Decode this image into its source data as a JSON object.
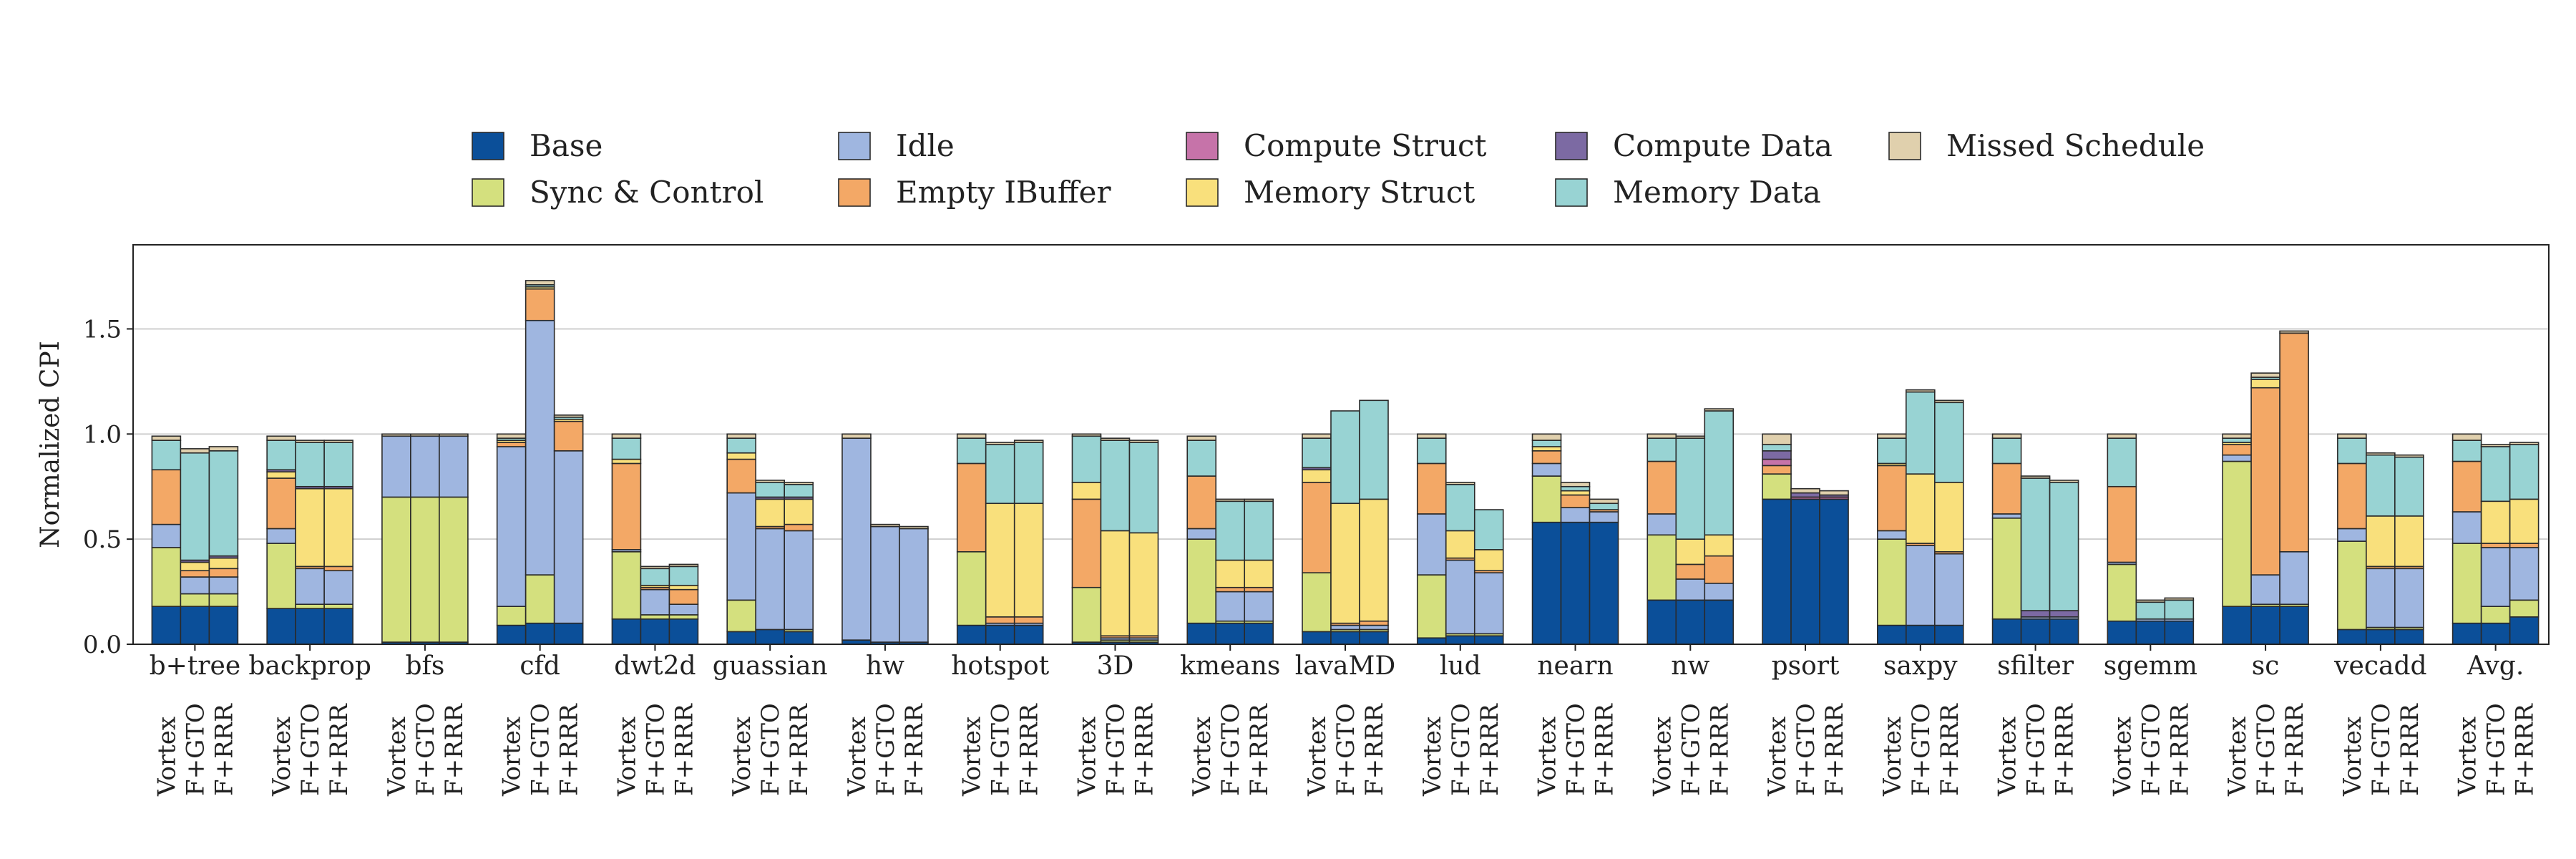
{
  "chart_data": {
    "type": "bar",
    "stacked": true,
    "ylabel": "Normalized CPI",
    "ylim": [
      0,
      1.9
    ],
    "yticks": [
      "0.0",
      "0.5",
      "1.0",
      "1.5"
    ],
    "grid": true,
    "legend_position": "top-center",
    "groups": [
      "b+tree",
      "backprop",
      "bfs",
      "cfd",
      "dwt2d",
      "guassian",
      "hw",
      "hotspot",
      "3D",
      "kmeans",
      "lavaMD",
      "lud",
      "nearn",
      "nw",
      "psort",
      "saxpy",
      "sfilter",
      "sgemm",
      "sc",
      "vecadd",
      "Avg."
    ],
    "configs": [
      "Vortex",
      "F+GTO",
      "F+RRR"
    ],
    "series": [
      {
        "name": "Base",
        "color": "#0b4f99"
      },
      {
        "name": "Sync & Control",
        "color": "#d4e07e"
      },
      {
        "name": "Idle",
        "color": "#9fb6e0"
      },
      {
        "name": "Empty IBuffer",
        "color": "#f3a866"
      },
      {
        "name": "Compute Struct",
        "color": "#c673a9"
      },
      {
        "name": "Memory Struct",
        "color": "#f9e07c"
      },
      {
        "name": "Compute Data",
        "color": "#7c6aa3"
      },
      {
        "name": "Memory Data",
        "color": "#98d3d3"
      },
      {
        "name": "Missed Schedule",
        "color": "#e0d0ad"
      }
    ],
    "bars": [
      [
        [
          0.18,
          0.28,
          0.11,
          0.26,
          0,
          0,
          0,
          0.14,
          0.02
        ],
        [
          0.18,
          0.06,
          0.08,
          0.03,
          0,
          0.04,
          0.01,
          0.51,
          0.02
        ],
        [
          0.18,
          0.06,
          0.08,
          0.04,
          0,
          0.05,
          0.01,
          0.5,
          0.02
        ]
      ],
      [
        [
          0.17,
          0.31,
          0.07,
          0.24,
          0,
          0.03,
          0.01,
          0.14,
          0.02
        ],
        [
          0.17,
          0.02,
          0.17,
          0.01,
          0,
          0.37,
          0.01,
          0.21,
          0.01
        ],
        [
          0.17,
          0.02,
          0.16,
          0.02,
          0,
          0.37,
          0.01,
          0.21,
          0.01
        ]
      ],
      [
        [
          0.01,
          0.69,
          0.29,
          0,
          0,
          0,
          0,
          0,
          0.01
        ],
        [
          0.01,
          0.69,
          0.29,
          0,
          0,
          0,
          0,
          0,
          0.01
        ],
        [
          0.01,
          0.69,
          0.29,
          0,
          0,
          0,
          0,
          0,
          0.01
        ]
      ],
      [
        [
          0.09,
          0.09,
          0.76,
          0.02,
          0,
          0.01,
          0,
          0.01,
          0.02
        ],
        [
          0.1,
          0.23,
          1.21,
          0.15,
          0,
          0.01,
          0,
          0.01,
          0.02
        ],
        [
          0.1,
          0,
          0.82,
          0.14,
          0,
          0.01,
          0,
          0.01,
          0.01
        ]
      ],
      [
        [
          0.12,
          0.32,
          0.01,
          0.41,
          0,
          0.02,
          0,
          0.1,
          0.02
        ],
        [
          0.12,
          0.02,
          0.12,
          0.01,
          0,
          0.01,
          0,
          0.08,
          0.01
        ],
        [
          0.12,
          0.02,
          0.05,
          0.07,
          0,
          0.02,
          0,
          0.09,
          0.01
        ]
      ],
      [
        [
          0.06,
          0.15,
          0.51,
          0.16,
          0,
          0.03,
          0,
          0.07,
          0.02
        ],
        [
          0.07,
          0,
          0.48,
          0.01,
          0,
          0.13,
          0.01,
          0.07,
          0.01
        ],
        [
          0.06,
          0.01,
          0.47,
          0.03,
          0,
          0.12,
          0.01,
          0.06,
          0.01
        ]
      ],
      [
        [
          0.02,
          0,
          0.96,
          0,
          0,
          0,
          0,
          0,
          0.02
        ],
        [
          0.01,
          0,
          0.55,
          0,
          0,
          0,
          0,
          0,
          0.01
        ],
        [
          0.01,
          0,
          0.54,
          0,
          0,
          0,
          0,
          0,
          0.01
        ]
      ],
      [
        [
          0.09,
          0.35,
          0,
          0.42,
          0,
          0,
          0,
          0.12,
          0.02
        ],
        [
          0.09,
          0,
          0.01,
          0.03,
          0,
          0.54,
          0,
          0.28,
          0.01
        ],
        [
          0.09,
          0,
          0.01,
          0.03,
          0,
          0.54,
          0,
          0.29,
          0.01
        ]
      ],
      [
        [
          0.01,
          0.26,
          0,
          0.42,
          0,
          0.08,
          0,
          0.22,
          0.01
        ],
        [
          0.01,
          0.01,
          0.01,
          0.01,
          0,
          0.5,
          0,
          0.43,
          0.01
        ],
        [
          0.01,
          0.01,
          0.01,
          0.01,
          0,
          0.49,
          0,
          0.43,
          0.01
        ]
      ],
      [
        [
          0.1,
          0.4,
          0.05,
          0.25,
          0,
          0,
          0,
          0.17,
          0.02
        ],
        [
          0.1,
          0.01,
          0.14,
          0.02,
          0,
          0.13,
          0,
          0.28,
          0.01
        ],
        [
          0.1,
          0.01,
          0.14,
          0.02,
          0,
          0.13,
          0,
          0.28,
          0.01
        ]
      ],
      [
        [
          0.06,
          0.28,
          0,
          0.43,
          0,
          0.06,
          0.01,
          0.14,
          0.02
        ],
        [
          0.06,
          0.01,
          0.02,
          0.01,
          0,
          0.57,
          0,
          0.44,
          0
        ],
        [
          0.06,
          0.01,
          0.02,
          0.02,
          0,
          0.58,
          0,
          0.47,
          0
        ]
      ],
      [
        [
          0.03,
          0.3,
          0.29,
          0.24,
          0,
          0,
          0,
          0.12,
          0.02
        ],
        [
          0.04,
          0.01,
          0.35,
          0.01,
          0,
          0.13,
          0,
          0.22,
          0.01
        ],
        [
          0.04,
          0.01,
          0.29,
          0.01,
          0,
          0.1,
          0,
          0.19,
          0
        ]
      ],
      [
        [
          0.58,
          0.22,
          0.06,
          0.06,
          0,
          0.02,
          0,
          0.03,
          0.03
        ],
        [
          0.58,
          0,
          0.07,
          0.06,
          0,
          0.02,
          0,
          0.02,
          0.02
        ],
        [
          0.58,
          0,
          0.05,
          0.01,
          0,
          0,
          0,
          0.03,
          0.02
        ]
      ],
      [
        [
          0.21,
          0.31,
          0.1,
          0.25,
          0,
          0,
          0,
          0.11,
          0.02
        ],
        [
          0.21,
          0,
          0.1,
          0.07,
          0,
          0.12,
          0,
          0.48,
          0.01
        ],
        [
          0.21,
          0,
          0.08,
          0.13,
          0,
          0.1,
          0,
          0.59,
          0.01
        ]
      ],
      [
        [
          0.69,
          0.12,
          0,
          0.04,
          0.03,
          0,
          0.04,
          0.03,
          0.05
        ],
        [
          0.69,
          0,
          0,
          0,
          0.01,
          0,
          0.02,
          0,
          0.02
        ],
        [
          0.69,
          0,
          0,
          0,
          0.01,
          0,
          0.01,
          0,
          0.02
        ]
      ],
      [
        [
          0.09,
          0.41,
          0.04,
          0.31,
          0,
          0.01,
          0,
          0.12,
          0.02
        ],
        [
          0.09,
          0,
          0.38,
          0.01,
          0,
          0.33,
          0,
          0.39,
          0.01
        ],
        [
          0.09,
          0,
          0.34,
          0.01,
          0,
          0.33,
          0,
          0.38,
          0.01
        ]
      ],
      [
        [
          0.12,
          0.48,
          0.02,
          0.24,
          0,
          0,
          0,
          0.12,
          0.02
        ],
        [
          0.12,
          0,
          0.01,
          0,
          0,
          0,
          0.03,
          0.63,
          0.01
        ],
        [
          0.12,
          0,
          0.01,
          0,
          0,
          0,
          0.03,
          0.61,
          0.01
        ]
      ],
      [
        [
          0.11,
          0.27,
          0.01,
          0.36,
          0,
          0,
          0,
          0.23,
          0.02
        ],
        [
          0.11,
          0,
          0.01,
          0,
          0,
          0,
          0,
          0.08,
          0.01
        ],
        [
          0.11,
          0,
          0.01,
          0,
          0,
          0,
          0,
          0.09,
          0.01
        ]
      ],
      [
        [
          0.18,
          0.69,
          0.03,
          0.05,
          0,
          0.01,
          0,
          0.02,
          0.02
        ],
        [
          0.18,
          0.01,
          0.14,
          0.89,
          0,
          0.04,
          0,
          0.01,
          0.02
        ],
        [
          0.18,
          0.01,
          0.25,
          1.04,
          0,
          0,
          0,
          0,
          0.01
        ]
      ],
      [
        [
          0.07,
          0.42,
          0.06,
          0.31,
          0,
          0,
          0,
          0.12,
          0.02
        ],
        [
          0.07,
          0.01,
          0.28,
          0.01,
          0,
          0.24,
          0,
          0.29,
          0.01
        ],
        [
          0.07,
          0.01,
          0.28,
          0.01,
          0,
          0.24,
          0,
          0.28,
          0.01
        ]
      ],
      [
        [
          0.1,
          0.38,
          0.15,
          0.24,
          0,
          0,
          0,
          0.1,
          0.03
        ],
        [
          0.1,
          0.08,
          0.28,
          0.02,
          0,
          0.2,
          0,
          0.26,
          0.01
        ],
        [
          0.13,
          0.08,
          0.25,
          0.02,
          0,
          0.21,
          0,
          0.26,
          0.01
        ]
      ]
    ]
  }
}
